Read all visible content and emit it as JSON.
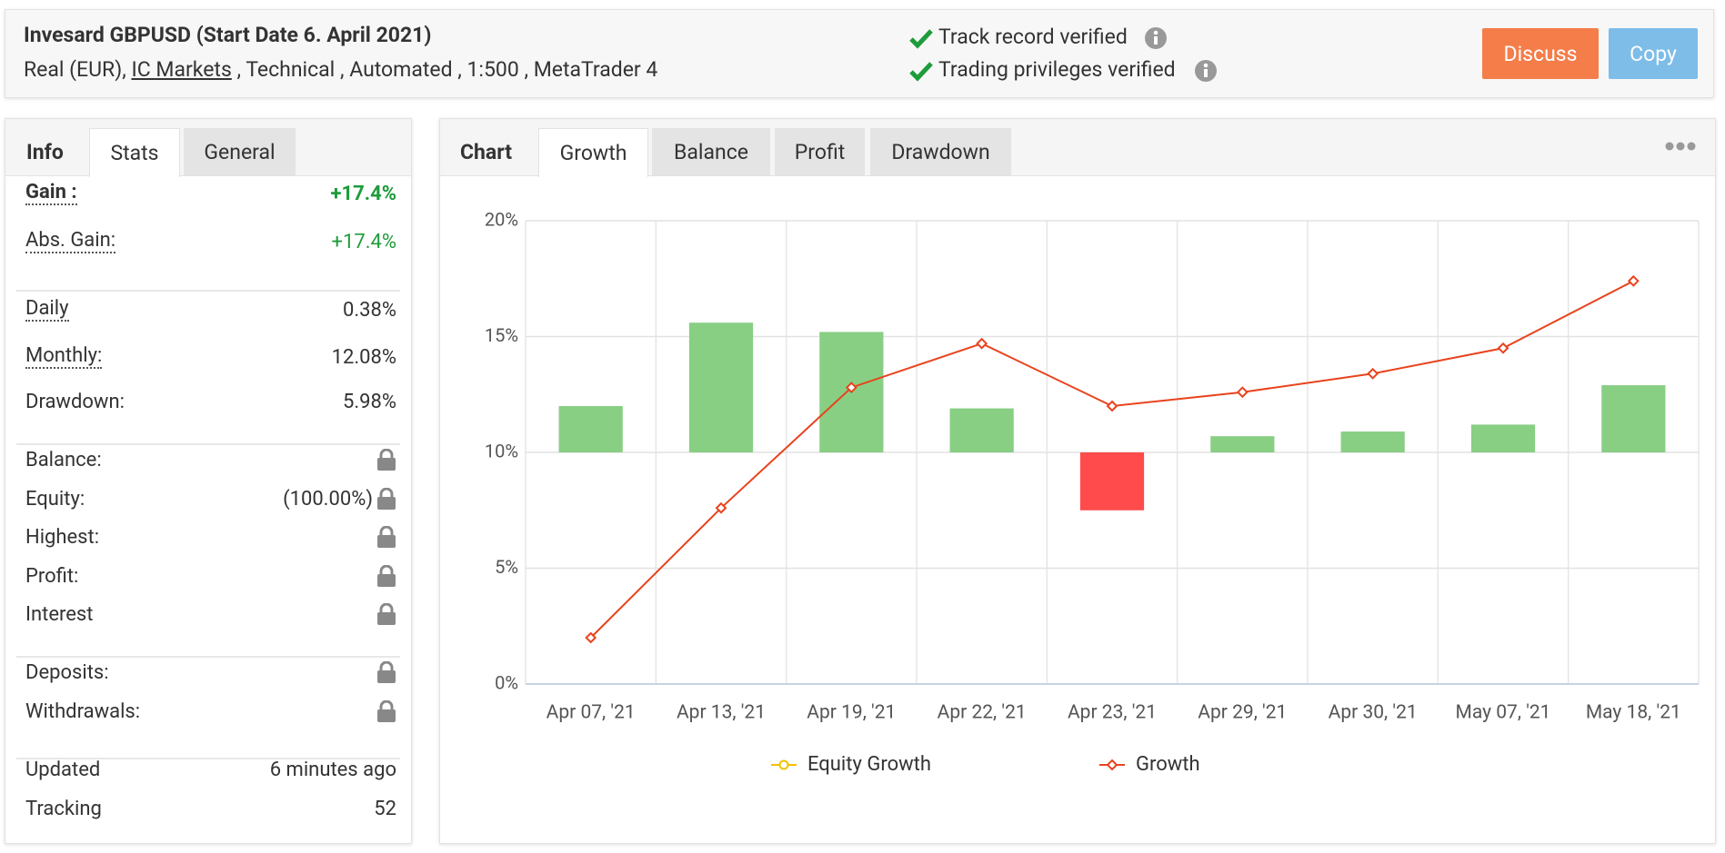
{
  "header": {
    "title": "Invesard GBPUSD (Start Date 6. April 2021)",
    "subtitle_start": "Real (EUR),",
    "broker": "IC Markets",
    "subtitle_end": ", Technical , Automated , 1:500 , MetaTrader 4",
    "verifications": [
      "Track record verified",
      "Trading privileges verified"
    ],
    "buttons": [
      "Discuss",
      "Copy"
    ]
  },
  "info_panel": {
    "title": "Info",
    "tabs": [
      "Stats",
      "General"
    ],
    "active_tab": 0,
    "groups": [
      [
        {
          "label": "Gain :",
          "value": "+17.4%",
          "color": "#1e9c3c",
          "bold": true,
          "underlined": true
        },
        {
          "label": "Abs. Gain:",
          "value": "+17.4%",
          "color": "#1e9c3c",
          "underlined": true
        }
      ],
      [
        {
          "label": "Daily",
          "value": "0.38%",
          "underlined": true
        },
        {
          "label": "Monthly:",
          "value": "12.08%",
          "underlined": true
        },
        {
          "label": "Drawdown:",
          "value": "5.98%"
        }
      ],
      [
        {
          "label": "Balance:",
          "locked": true
        },
        {
          "label": "Equity:",
          "value": "(100.00%)",
          "locked": true
        },
        {
          "label": "Highest:",
          "locked": true
        },
        {
          "label": "Profit:",
          "locked": true
        },
        {
          "label": "Interest",
          "locked": true
        }
      ],
      [
        {
          "label": "Deposits:",
          "locked": true
        },
        {
          "label": "Withdrawals:",
          "locked": true
        }
      ],
      [
        {
          "label": "Updated",
          "value": "6 minutes ago"
        },
        {
          "label": "Tracking",
          "value": "52"
        }
      ]
    ]
  },
  "chart_panel": {
    "title": "Chart",
    "tabs": [
      "Growth",
      "Balance",
      "Profit",
      "Drawdown"
    ],
    "active_tab": 0
  },
  "chart_data": {
    "type": "bar_line",
    "categories": [
      "Apr 07, '21",
      "Apr 13, '21",
      "Apr 19, '21",
      "Apr 22, '21",
      "Apr 23, '21",
      "Apr 29, '21",
      "Apr 30, '21",
      "May 07, '21",
      "May 18, '21"
    ],
    "ylim": [
      0,
      20
    ],
    "yticks": [
      {
        "value": 0,
        "label": "0%"
      },
      {
        "value": 5,
        "label": "5%"
      },
      {
        "value": 10,
        "label": "10%"
      },
      {
        "value": 15,
        "label": "15%"
      },
      {
        "value": 20,
        "label": "20%"
      }
    ],
    "y2lim": [
      -10,
      10
    ],
    "grid": true,
    "legend": "bottom",
    "series": [
      {
        "type": "bar",
        "axis": "y2",
        "color": "#88cf84",
        "negative_color": "#ff4b4b",
        "values": [
          2.0,
          5.6,
          5.2,
          1.9,
          -2.5,
          0.7,
          0.9,
          1.2,
          2.9
        ]
      },
      {
        "name": "Equity Growth",
        "type": "line",
        "color": "#f2c200",
        "values": [
          null,
          null,
          null,
          null,
          null,
          null,
          null,
          null,
          null
        ]
      },
      {
        "name": "Growth",
        "type": "line",
        "color": "#e8431e",
        "values": [
          2.0,
          7.6,
          12.8,
          14.7,
          12.0,
          12.6,
          13.4,
          14.5,
          17.4
        ]
      }
    ]
  }
}
